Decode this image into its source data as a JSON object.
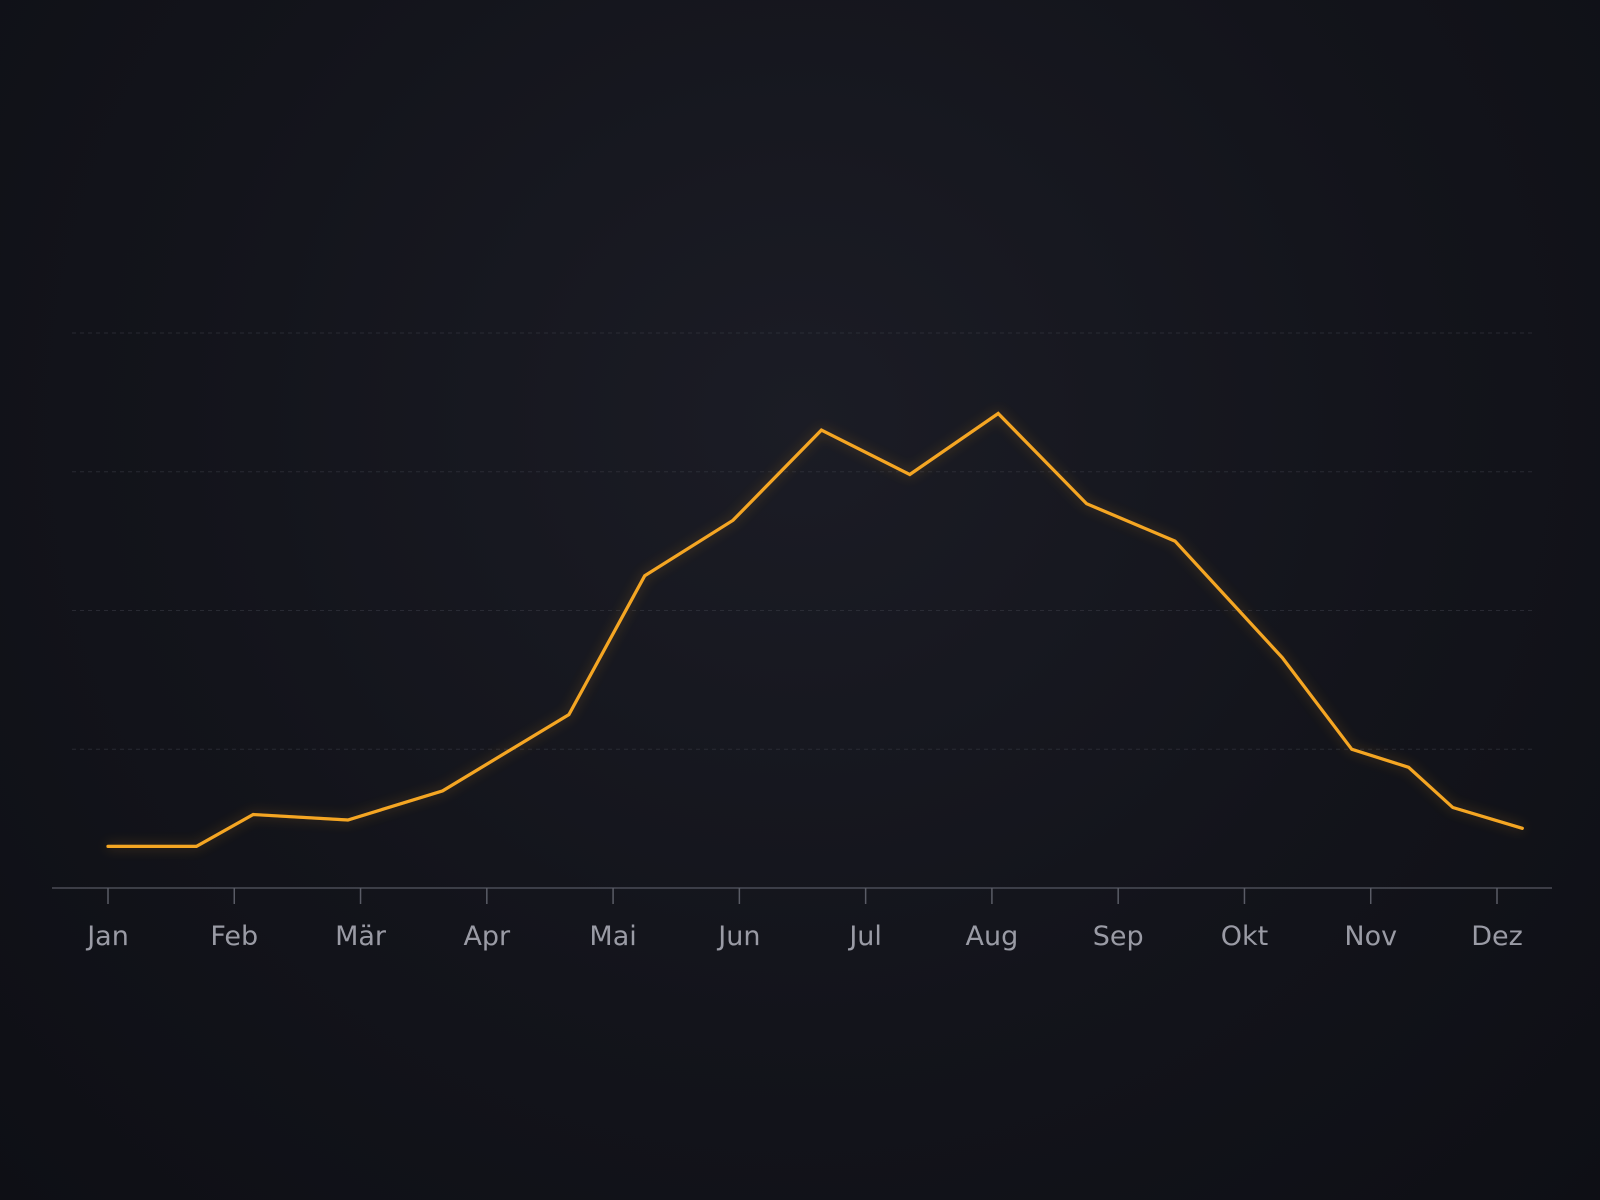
{
  "chart_data": {
    "type": "line",
    "x": [
      "Jan",
      "Feb",
      "Mär",
      "Apr",
      "Mai",
      "Jun",
      "Jul",
      "Aug",
      "Sep",
      "Okt",
      "Nov",
      "Dez"
    ],
    "series": [
      {
        "color": "#f5a623",
        "points": [
          [
            0.0,
            3.0
          ],
          [
            0.7,
            3.0
          ],
          [
            1.15,
            5.3
          ],
          [
            1.9,
            4.9
          ],
          [
            2.65,
            7.0
          ],
          [
            3.65,
            12.5
          ],
          [
            4.25,
            22.5
          ],
          [
            4.95,
            26.5
          ],
          [
            5.65,
            33.0
          ],
          [
            6.35,
            29.8
          ],
          [
            7.05,
            34.2
          ],
          [
            7.75,
            27.7
          ],
          [
            8.45,
            25.0
          ],
          [
            9.3,
            16.6
          ],
          [
            9.85,
            10.0
          ],
          [
            10.3,
            8.7
          ],
          [
            10.65,
            5.8
          ],
          [
            11.2,
            4.3
          ]
        ]
      }
    ],
    "xlabel": "",
    "ylabel": "",
    "ylim": [
      0,
      40
    ],
    "y_gridlines": [
      10,
      20,
      30,
      40
    ],
    "grid": true,
    "grid_style": "dashed-horizontal",
    "legend": "none",
    "title": ""
  },
  "colors": {
    "background": "#13141b",
    "series": "#f5a623",
    "grid": "#3a3c46",
    "axis": "#4a4c56",
    "tick_label": "#9a9ba5"
  }
}
